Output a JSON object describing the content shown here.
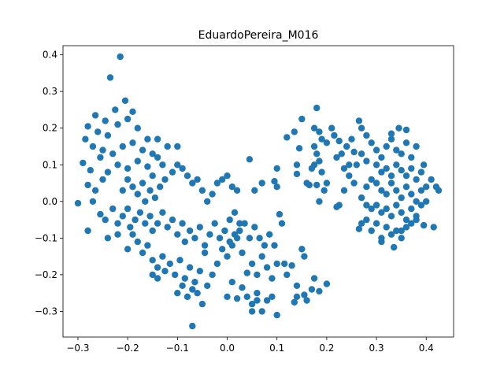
{
  "chart_data": {
    "type": "scatter",
    "title": "EduardoPereira_M016",
    "xlabel": "",
    "ylabel": "",
    "xlim": [
      -0.33,
      0.455
    ],
    "ylim": [
      -0.37,
      0.425
    ],
    "xticks": [
      -0.3,
      -0.2,
      -0.1,
      0.0,
      0.1,
      0.2,
      0.3,
      0.4
    ],
    "xtick_labels": [
      "−0.3",
      "−0.2",
      "−0.1",
      "0.0",
      "0.1",
      "0.2",
      "0.3",
      "0.4"
    ],
    "yticks": [
      -0.3,
      -0.2,
      -0.1,
      0.0,
      0.1,
      0.2,
      0.3,
      0.4
    ],
    "ytick_labels": [
      "−0.3",
      "−0.2",
      "−0.1",
      "0.0",
      "0.1",
      "0.2",
      "0.3",
      "0.4"
    ],
    "grid": false,
    "marker_color": "#1f77b4",
    "points": [
      [
        -0.215,
        0.395
      ],
      [
        -0.235,
        0.338
      ],
      [
        -0.205,
        0.275
      ],
      [
        -0.225,
        0.25
      ],
      [
        -0.19,
        0.245
      ],
      [
        -0.245,
        0.22
      ],
      [
        -0.265,
        0.235
      ],
      [
        -0.28,
        0.205
      ],
      [
        -0.285,
        0.17
      ],
      [
        -0.26,
        0.19
      ],
      [
        -0.22,
        0.21
      ],
      [
        -0.2,
        0.225
      ],
      [
        -0.18,
        0.2
      ],
      [
        -0.16,
        0.17
      ],
      [
        -0.24,
        0.18
      ],
      [
        -0.27,
        0.15
      ],
      [
        -0.25,
        0.14
      ],
      [
        -0.29,
        0.105
      ],
      [
        -0.275,
        0.085
      ],
      [
        -0.255,
        0.12
      ],
      [
        -0.23,
        0.13
      ],
      [
        -0.21,
        0.15
      ],
      [
        -0.19,
        0.16
      ],
      [
        -0.17,
        0.14
      ],
      [
        -0.15,
        0.13
      ],
      [
        -0.14,
        0.12
      ],
      [
        -0.13,
        0.1
      ],
      [
        -0.12,
        0.15
      ],
      [
        -0.14,
        0.17
      ],
      [
        -0.1,
        0.15
      ],
      [
        -0.28,
        0.045
      ],
      [
        -0.27,
        0.0
      ],
      [
        -0.265,
        0.03
      ],
      [
        -0.25,
        0.06
      ],
      [
        -0.24,
        0.08
      ],
      [
        -0.22,
        0.1
      ],
      [
        -0.2,
        0.09
      ],
      [
        -0.18,
        0.11
      ],
      [
        -0.16,
        0.095
      ],
      [
        -0.15,
        0.07
      ],
      [
        -0.2,
        0.06
      ],
      [
        -0.21,
        0.03
      ],
      [
        -0.19,
        0.04
      ],
      [
        -0.18,
        0.02
      ],
      [
        -0.17,
        0.05
      ],
      [
        -0.165,
        0.0
      ],
      [
        -0.155,
        0.03
      ],
      [
        -0.145,
        0.01
      ],
      [
        -0.135,
        0.04
      ],
      [
        -0.125,
        0.06
      ],
      [
        -0.11,
        0.08
      ],
      [
        -0.1,
        0.1
      ],
      [
        -0.09,
        0.09
      ],
      [
        -0.08,
        0.07
      ],
      [
        -0.07,
        0.05
      ],
      [
        -0.06,
        0.06
      ],
      [
        -0.05,
        0.03
      ],
      [
        -0.04,
        0.0
      ],
      [
        -0.03,
        0.02
      ],
      [
        -0.02,
        0.05
      ],
      [
        -0.01,
        0.06
      ],
      [
        0.0,
        0.07
      ],
      [
        0.01,
        0.04
      ],
      [
        0.02,
        0.03
      ],
      [
        -0.3,
        -0.005
      ],
      [
        -0.28,
        -0.08
      ],
      [
        -0.255,
        -0.035
      ],
      [
        -0.245,
        -0.05
      ],
      [
        -0.23,
        -0.02
      ],
      [
        -0.22,
        -0.06
      ],
      [
        -0.21,
        -0.04
      ],
      [
        -0.2,
        -0.02
      ],
      [
        -0.195,
        -0.07
      ],
      [
        -0.185,
        -0.05
      ],
      [
        -0.175,
        -0.03
      ],
      [
        -0.165,
        -0.06
      ],
      [
        -0.155,
        -0.04
      ],
      [
        -0.15,
        -0.08
      ],
      [
        -0.14,
        -0.06
      ],
      [
        -0.13,
        -0.03
      ],
      [
        -0.12,
        -0.07
      ],
      [
        -0.11,
        -0.05
      ],
      [
        -0.1,
        -0.09
      ],
      [
        -0.09,
        -0.06
      ],
      [
        -0.085,
        -0.11
      ],
      [
        -0.075,
        -0.08
      ],
      [
        -0.065,
        -0.1
      ],
      [
        -0.055,
        -0.07
      ],
      [
        -0.045,
        -0.12
      ],
      [
        -0.035,
        -0.09
      ],
      [
        -0.025,
        -0.06
      ],
      [
        -0.015,
        -0.1
      ],
      [
        -0.005,
        -0.08
      ],
      [
        0.005,
        -0.05
      ],
      [
        0.015,
        -0.03
      ],
      [
        0.025,
        -0.06
      ],
      [
        -0.24,
        -0.1
      ],
      [
        -0.22,
        -0.09
      ],
      [
        -0.2,
        -0.13
      ],
      [
        -0.18,
        -0.11
      ],
      [
        -0.17,
        -0.14
      ],
      [
        -0.16,
        -0.12
      ],
      [
        -0.15,
        -0.16
      ],
      [
        -0.14,
        -0.18
      ],
      [
        -0.13,
        -0.15
      ],
      [
        -0.125,
        -0.19
      ],
      [
        -0.115,
        -0.17
      ],
      [
        -0.105,
        -0.2
      ],
      [
        -0.095,
        -0.16
      ],
      [
        -0.085,
        -0.21
      ],
      [
        -0.075,
        -0.18
      ],
      [
        -0.065,
        -0.22
      ],
      [
        -0.055,
        -0.19
      ],
      [
        -0.045,
        -0.14
      ],
      [
        -0.04,
        -0.23
      ],
      [
        -0.03,
        -0.2
      ],
      [
        -0.02,
        -0.17
      ],
      [
        -0.01,
        -0.13
      ],
      [
        0.0,
        -0.15
      ],
      [
        0.01,
        -0.12
      ],
      [
        0.02,
        -0.1
      ],
      [
        0.03,
        -0.14
      ],
      [
        -0.19,
        -0.09
      ],
      [
        -0.15,
        -0.2
      ],
      [
        -0.14,
        -0.21
      ],
      [
        -0.1,
        -0.25
      ],
      [
        -0.09,
        -0.23
      ],
      [
        -0.08,
        -0.26
      ],
      [
        -0.07,
        -0.24
      ],
      [
        -0.06,
        -0.25
      ],
      [
        -0.05,
        -0.28
      ],
      [
        -0.07,
        -0.34
      ],
      [
        0.0,
        -0.26
      ],
      [
        0.01,
        -0.22
      ],
      [
        0.02,
        -0.265
      ],
      [
        0.03,
        -0.235
      ],
      [
        0.04,
        -0.26
      ],
      [
        0.05,
        -0.28
      ],
      [
        0.06,
        -0.25
      ],
      [
        0.07,
        -0.3
      ],
      [
        0.08,
        -0.27
      ],
      [
        0.09,
        -0.26
      ],
      [
        0.1,
        -0.31
      ],
      [
        0.05,
        -0.3
      ],
      [
        0.06,
        -0.27
      ],
      [
        0.04,
        -0.195
      ],
      [
        0.05,
        -0.17
      ],
      [
        0.06,
        -0.2
      ],
      [
        0.07,
        -0.15
      ],
      [
        0.08,
        -0.18
      ],
      [
        0.09,
        -0.21
      ],
      [
        0.1,
        -0.17
      ],
      [
        0.095,
        -0.12
      ],
      [
        0.085,
        -0.09
      ],
      [
        0.075,
        -0.12
      ],
      [
        0.065,
        -0.1
      ],
      [
        0.055,
        -0.07
      ],
      [
        0.045,
        -0.1
      ],
      [
        0.035,
        -0.06
      ],
      [
        0.025,
        -0.08
      ],
      [
        0.015,
        -0.09
      ],
      [
        0.005,
        -0.11
      ],
      [
        0.045,
        0.115
      ],
      [
        0.055,
        0.03
      ],
      [
        0.07,
        0.05
      ],
      [
        0.095,
        0.055
      ],
      [
        0.1,
        0.09
      ],
      [
        0.1,
        0.04
      ],
      [
        0.105,
        -0.035
      ],
      [
        0.11,
        -0.06
      ],
      [
        0.115,
        -0.17
      ],
      [
        0.12,
        -0.2
      ],
      [
        0.13,
        -0.175
      ],
      [
        0.135,
        -0.275
      ],
      [
        0.14,
        -0.26
      ],
      [
        0.14,
        -0.23
      ],
      [
        0.155,
        -0.255
      ],
      [
        0.16,
        -0.27
      ],
      [
        0.17,
        -0.24
      ],
      [
        0.175,
        -0.21
      ],
      [
        0.185,
        -0.245
      ],
      [
        0.2,
        -0.225
      ],
      [
        0.155,
        -0.15
      ],
      [
        0.15,
        -0.13
      ],
      [
        0.12,
        0.175
      ],
      [
        0.135,
        0.19
      ],
      [
        0.145,
        0.145
      ],
      [
        0.15,
        0.225
      ],
      [
        0.175,
        0.2
      ],
      [
        0.18,
        0.255
      ],
      [
        0.185,
        0.19
      ],
      [
        0.19,
        0.17
      ],
      [
        0.175,
        0.15
      ],
      [
        0.18,
        0.13
      ],
      [
        0.185,
        0.11
      ],
      [
        0.19,
        0.08
      ],
      [
        0.2,
        0.05
      ],
      [
        0.195,
        0.03
      ],
      [
        0.18,
        0.045
      ],
      [
        0.165,
        0.045
      ],
      [
        0.185,
        0.0
      ],
      [
        0.14,
        0.1
      ],
      [
        0.14,
        0.075
      ],
      [
        0.215,
        0.18
      ],
      [
        0.225,
        0.165
      ],
      [
        0.23,
        0.13
      ],
      [
        0.24,
        0.15
      ],
      [
        0.25,
        0.17
      ],
      [
        0.265,
        0.22
      ],
      [
        0.27,
        0.2
      ],
      [
        0.28,
        0.18
      ],
      [
        0.26,
        0.1
      ],
      [
        0.235,
        0.09
      ],
      [
        0.245,
        0.07
      ],
      [
        0.255,
        0.05
      ],
      [
        0.27,
        0.13
      ],
      [
        0.28,
        0.11
      ],
      [
        0.29,
        0.16
      ],
      [
        0.3,
        0.14
      ],
      [
        0.31,
        0.12
      ],
      [
        0.32,
        0.15
      ],
      [
        0.33,
        0.17
      ],
      [
        0.34,
        0.14
      ],
      [
        0.35,
        0.13
      ],
      [
        0.36,
        0.16
      ],
      [
        0.37,
        0.12
      ],
      [
        0.38,
        0.15
      ],
      [
        0.36,
        0.195
      ],
      [
        0.345,
        0.2
      ],
      [
        0.3,
        0.1
      ],
      [
        0.31,
        0.08
      ],
      [
        0.32,
        0.09
      ],
      [
        0.33,
        0.07
      ],
      [
        0.34,
        0.1
      ],
      [
        0.35,
        0.085
      ],
      [
        0.36,
        0.07
      ],
      [
        0.37,
        0.09
      ],
      [
        0.38,
        0.06
      ],
      [
        0.39,
        0.08
      ],
      [
        0.395,
        0.1
      ],
      [
        0.4,
        0.04
      ],
      [
        0.41,
        0.06
      ],
      [
        0.42,
        0.04
      ],
      [
        0.425,
        0.03
      ],
      [
        0.28,
        0.04
      ],
      [
        0.29,
        0.06
      ],
      [
        0.3,
        0.05
      ],
      [
        0.31,
        0.03
      ],
      [
        0.32,
        0.02
      ],
      [
        0.33,
        0.05
      ],
      [
        0.34,
        0.03
      ],
      [
        0.35,
        0.01
      ],
      [
        0.36,
        0.04
      ],
      [
        0.37,
        0.02
      ],
      [
        0.38,
        0.0
      ],
      [
        0.39,
        0.03
      ],
      [
        0.27,
        0.01
      ],
      [
        0.28,
        -0.01
      ],
      [
        0.29,
        -0.02
      ],
      [
        0.3,
        -0.01
      ],
      [
        0.31,
        -0.03
      ],
      [
        0.32,
        -0.02
      ],
      [
        0.33,
        -0.04
      ],
      [
        0.34,
        -0.01
      ],
      [
        0.35,
        -0.03
      ],
      [
        0.36,
        -0.05
      ],
      [
        0.37,
        -0.02
      ],
      [
        0.38,
        -0.04
      ],
      [
        0.39,
        -0.01
      ],
      [
        0.4,
        0.0
      ],
      [
        0.27,
        -0.06
      ],
      [
        0.28,
        -0.05
      ],
      [
        0.29,
        -0.08
      ],
      [
        0.3,
        -0.06
      ],
      [
        0.31,
        -0.1
      ],
      [
        0.32,
        -0.07
      ],
      [
        0.33,
        -0.09
      ],
      [
        0.34,
        -0.08
      ],
      [
        0.35,
        -0.1
      ],
      [
        0.36,
        -0.07
      ],
      [
        0.37,
        -0.06
      ],
      [
        0.38,
        -0.05
      ],
      [
        0.265,
        -0.075
      ],
      [
        0.31,
        -0.11
      ],
      [
        0.335,
        -0.125
      ],
      [
        0.35,
        -0.08
      ],
      [
        0.415,
        -0.07
      ],
      [
        0.395,
        -0.065
      ],
      [
        0.33,
        0.185
      ],
      [
        0.22,
        0.12
      ],
      [
        0.21,
        0.2
      ],
      [
        0.2,
        0.16
      ],
      [
        0.175,
        0.1
      ],
      [
        0.17,
        0.09
      ],
      [
        0.16,
        0.05
      ],
      [
        0.225,
        -0.01
      ],
      [
        0.22,
        -0.015
      ],
      [
        0.235,
        0.03
      ],
      [
        0.245,
        0.1
      ],
      [
        0.255,
        0.135
      ]
    ]
  }
}
